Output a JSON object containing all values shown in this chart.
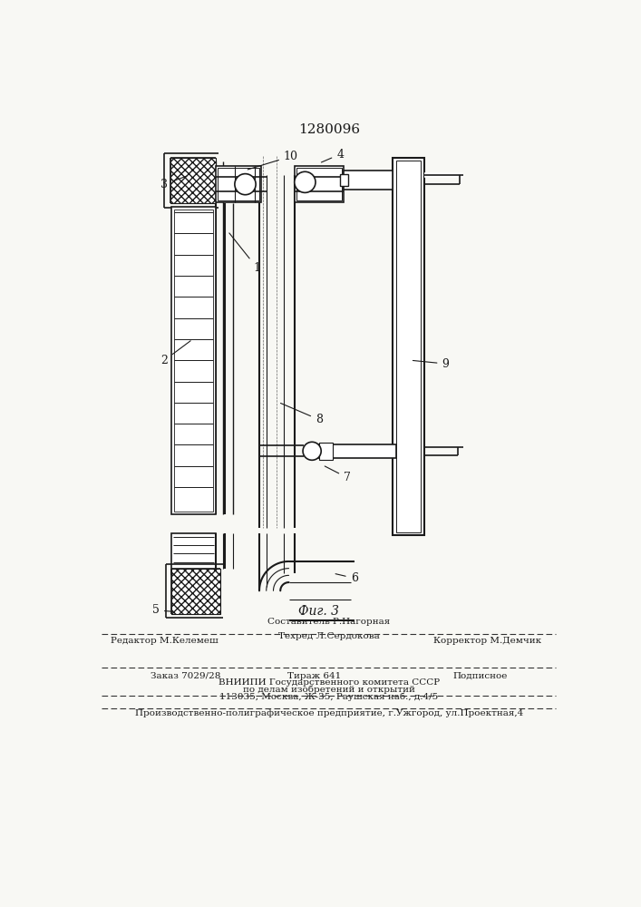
{
  "title": "1280096",
  "fig_label": "Фиг. 3",
  "bg": "#f8f8f4",
  "lc": "#1a1a1a",
  "footer": [
    "Составитель Р.Нагорная",
    "Редактор М.Келемеш",
    "Техред Л.Сердокова",
    "Корректор М.Демчик",
    "Заказ 7029/28",
    "Тираж 641",
    "Подписное",
    "ВНИИПИ Государственного комитета СССР",
    "по делам изобретений и открытий",
    "113035, Москва, Ж-35, Раушская наб., д.4/5",
    "Производственно-полиграфическое предприятие, г.Ужгород, ул.Проектная,4"
  ]
}
